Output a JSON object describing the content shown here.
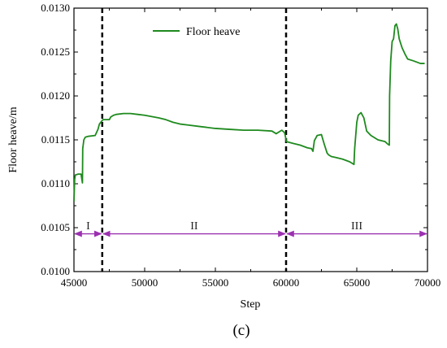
{
  "chart_data": {
    "type": "line",
    "xlabel": "Step",
    "ylabel": "Floor heave/m",
    "xlim": [
      45000,
      70000
    ],
    "ylim": [
      0.01,
      0.013
    ],
    "x_ticks": [
      "45000",
      "50000",
      "55000",
      "60000",
      "65000",
      "70000"
    ],
    "y_ticks": [
      "0.0100",
      "0.0105",
      "0.0110",
      "0.0115",
      "0.0120",
      "0.0125",
      "0.0130"
    ],
    "legend_position": "top-center",
    "series": [
      {
        "name": "Floor heave",
        "color": "#1e8a1e",
        "x": [
          45000,
          45050,
          45100,
          45300,
          45500,
          45600,
          45620,
          45700,
          45800,
          46000,
          46500,
          46700,
          46800,
          47000,
          47050,
          47200,
          47500,
          47600,
          47800,
          48000,
          48500,
          49000,
          49500,
          50000,
          51000,
          51500,
          52000,
          52500,
          53000,
          54000,
          55000,
          56000,
          57000,
          58000,
          59000,
          59300,
          59500,
          59700,
          59900,
          60000,
          60020,
          60500,
          61000,
          61500,
          61800,
          61900,
          62000,
          62200,
          62500,
          62700,
          62900,
          63000,
          63200,
          63500,
          64000,
          64500,
          64800,
          64850,
          65000,
          65100,
          65300,
          65500,
          65700,
          66000,
          66500,
          67000,
          67200,
          67300,
          67320,
          67400,
          67500,
          67600,
          67700,
          67800,
          67900,
          68000,
          68200,
          68400,
          68600,
          69000,
          69500,
          69800
        ],
        "y": [
          0.0108,
          0.01105,
          0.0111,
          0.01111,
          0.01111,
          0.01101,
          0.0114,
          0.0115,
          0.01153,
          0.01154,
          0.01155,
          0.01162,
          0.01168,
          0.01172,
          0.01173,
          0.01173,
          0.01173,
          0.01176,
          0.01178,
          0.01179,
          0.0118,
          0.0118,
          0.01179,
          0.01178,
          0.01175,
          0.01173,
          0.0117,
          0.01168,
          0.01167,
          0.01165,
          0.01163,
          0.01162,
          0.01161,
          0.01161,
          0.0116,
          0.01157,
          0.01159,
          0.01161,
          0.01158,
          0.0115,
          0.01148,
          0.01146,
          0.01144,
          0.01141,
          0.0114,
          0.01137,
          0.01149,
          0.01155,
          0.01156,
          0.01145,
          0.01135,
          0.01133,
          0.01131,
          0.0113,
          0.01128,
          0.01125,
          0.01122,
          0.0114,
          0.0117,
          0.01178,
          0.01181,
          0.01175,
          0.0116,
          0.01155,
          0.0115,
          0.01148,
          0.01145,
          0.01144,
          0.012,
          0.0124,
          0.01262,
          0.01265,
          0.0128,
          0.01282,
          0.01276,
          0.01265,
          0.01255,
          0.01248,
          0.01242,
          0.0124,
          0.01237,
          0.01237
        ]
      }
    ],
    "stage_boundaries": [
      47000,
      60000
    ],
    "stages": [
      {
        "label": "I",
        "from": 45000,
        "to": 47000
      },
      {
        "label": "II",
        "from": 47000,
        "to": 60000
      },
      {
        "label": "III",
        "from": 60000,
        "to": 70000
      }
    ],
    "stage_arrow_y": 0.01043,
    "stage_label_y": 0.01048,
    "stage_color": "#9b30b0",
    "caption": "(c)"
  }
}
